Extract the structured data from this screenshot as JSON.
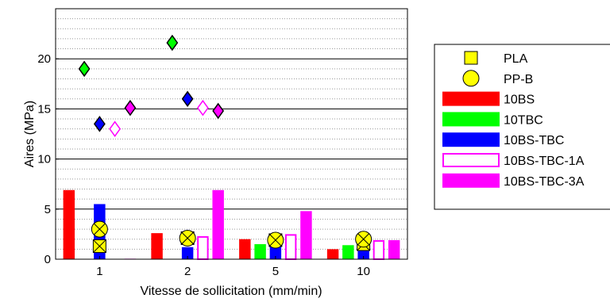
{
  "chart_data": {
    "type": "bar",
    "title": "",
    "xlabel": "Vitesse de sollicitation (mm/min)",
    "ylabel": "Aires (MPa)",
    "ylim": [
      0,
      25
    ],
    "yticks": [
      0,
      5,
      10,
      15,
      20
    ],
    "minor_grid_step": 1,
    "grid": true,
    "legend_position": "outside-right",
    "categories": [
      "1",
      "2",
      "5",
      "10"
    ],
    "bar_series": [
      {
        "name": "10BS",
        "color": "#ff0000",
        "fill": "solid",
        "values": [
          6.9,
          2.6,
          2.0,
          1.0
        ]
      },
      {
        "name": "10TBC",
        "color": "#00ff00",
        "fill": "solid",
        "values": [
          0,
          0,
          1.5,
          1.4
        ]
      },
      {
        "name": "10BS-TBC",
        "color": "#0000ff",
        "fill": "solid",
        "values": [
          5.5,
          1.2,
          1.3,
          1.4
        ]
      },
      {
        "name": "10BS-TBC-1A",
        "color": "#ff00ff",
        "fill": "hollow",
        "values": [
          0,
          2.3,
          2.5,
          1.9
        ]
      },
      {
        "name": "10BS-TBC-3A",
        "color": "#ff00ff",
        "fill": "solid",
        "values": [
          0.05,
          6.9,
          4.8,
          1.9
        ]
      }
    ],
    "marker_series": [
      {
        "name": "10TBC",
        "color": "#00ff00",
        "marker": "diamond",
        "fill": "solid",
        "values": [
          19.0,
          21.6,
          null,
          null
        ]
      },
      {
        "name": "10BS-TBC",
        "color": "#0000ff",
        "marker": "diamond",
        "fill": "solid",
        "values": [
          13.5,
          16.0,
          null,
          null
        ]
      },
      {
        "name": "10BS-TBC-1A",
        "color": "#ff00ff",
        "marker": "diamond",
        "fill": "hollow",
        "values": [
          13.0,
          15.1,
          null,
          null
        ]
      },
      {
        "name": "10BS-TBC-3A",
        "color": "#ff00ff",
        "marker": "diamond",
        "fill": "solid",
        "values": [
          15.1,
          14.8,
          null,
          null
        ]
      },
      {
        "name": "PLA",
        "color": "#ffff00",
        "marker": "square-x",
        "values": [
          1.3,
          2.1,
          1.9,
          1.5
        ]
      },
      {
        "name": "PP-B",
        "color": "#ffff00",
        "marker": "circle-x",
        "values": [
          3.0,
          2.1,
          1.9,
          2.0
        ]
      }
    ],
    "legend": [
      {
        "label": "PLA",
        "swatch": "square-marker",
        "color": "#ffff00"
      },
      {
        "label": "PP-B",
        "swatch": "circle-marker",
        "color": "#ffff00"
      },
      {
        "label": "10BS",
        "swatch": "solid-bar",
        "color": "#ff0000"
      },
      {
        "label": "10TBC",
        "swatch": "solid-bar",
        "color": "#00ff00"
      },
      {
        "label": "10BS-TBC",
        "swatch": "solid-bar",
        "color": "#0000ff"
      },
      {
        "label": "10BS-TBC-1A",
        "swatch": "hollow-bar",
        "color": "#ff00ff"
      },
      {
        "label": "10BS-TBC-3A",
        "swatch": "solid-bar",
        "color": "#ff00ff"
      }
    ]
  }
}
